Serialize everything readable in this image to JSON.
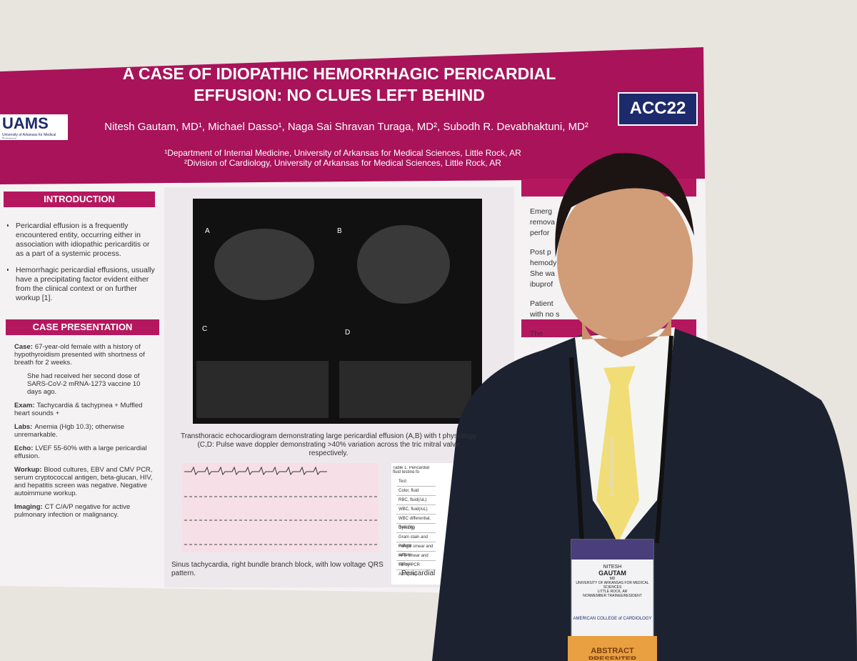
{
  "header": {
    "title": "A CASE OF IDIOPATHIC HEMORRHAGIC PERICARDIAL EFFUSION: NO CLUES LEFT BEHIND",
    "authors": "Nitesh Gautam, MD¹, Michael Dasso¹, Naga Sai Shravan Turaga, MD², Subodh R. Devabhaktuni, MD²",
    "affiliations": [
      "¹Department of Internal Medicine, University of Arkansas for Medical Sciences, Little Rock, AR",
      "²Division of Cardiology, University of Arkansas for Medical Sciences, Little Rock, AR"
    ],
    "left_logo": "UAMS",
    "left_logo_sub": "University of Arkansas for Medical Sciences",
    "right_logo": "ACC22"
  },
  "introduction": {
    "heading": "INTRODUCTION",
    "bullets": [
      "Pericardial effusion is a frequently encountered entity, occurring either in association with idiopathic pericarditis or as a part of a systemic process.",
      "Hemorrhagic pericardial effusions, usually have a precipitating factor evident either from the clinical context or on further workup [1]."
    ]
  },
  "case_presentation": {
    "heading": "CASE PRESENTATION",
    "items": [
      {
        "label": "Case:",
        "text": "67-year-old female with a history of hypothyroidism presented with shortness of breath for 2 weeks."
      },
      {
        "label": "",
        "text": "She had received her second dose of SARS-CoV-2 mRNA-1273 vaccine 10 days ago."
      },
      {
        "label": "Exam:",
        "text": "Tachycardia & tachypnea + Muffled heart sounds +"
      },
      {
        "label": "Labs:",
        "text": "Anemia (Hgb 10.3); otherwise unremarkable."
      },
      {
        "label": "Echo:",
        "text": "LVEF 55-60% with a large pericardial effusion."
      },
      {
        "label": "Workup:",
        "text": "Blood cultures, EBV and CMV PCR, serum cryptococcal antigen, beta-glucan, HIV, and hepatitis screen was negative. Negative autoimmune workup."
      },
      {
        "label": "Imaging:",
        "text": "CT C/A/P negative for active pulmonary infection or malignancy."
      }
    ]
  },
  "figures": {
    "echo_panels": [
      "A",
      "B",
      "C",
      "D"
    ],
    "echo_caption": "Transthoracic echocardiogram demonstrating large pericardial effusion (A,B) with t physiology (C,D: Pulse wave doppler demonstrating >40% variation across the tric mitral valve respectively.",
    "ecg_caption": "Sinus tachycardia, right bundle branch block, with  low voltage QRS pattern.",
    "table_title": "Table 1. Pericardial fluid testing fo",
    "table_rows": [
      "Test",
      "Color, fluid",
      "RBC, fluid(/uL)",
      "WBC, fluid(/uL)",
      "WBC differential, fluid (%)",
      "Cytology",
      "Gram stain and culture",
      "Fungal smear and culture",
      "AFB smear and culture",
      "TB by PCR",
      "ADA(U/L)"
    ],
    "table_caption": "Pericardial"
  },
  "right_column": {
    "fragments": [
      "Emerg",
      "remova",
      "perfor",
      "Post p",
      "hemody",
      "She wa",
      "ibuprof",
      "Patient",
      "with no s",
      "The"
    ]
  },
  "badge": {
    "lanyard": "American College of Cardiology",
    "first_name": "NITESH",
    "last_name": "GAUTAM",
    "degree": "MD",
    "institution": "UNIVERSITY OF ARKANSAS FOR MEDICAL SCIENCES",
    "city": "LITTLE ROCK, AR",
    "member_type": "NONMEMBER TRAINEE/RESIDENT",
    "org": "AMERICAN COLLEGE of CARDIOLOGY",
    "ribbon": "ABSTRACT PRESENTER"
  }
}
